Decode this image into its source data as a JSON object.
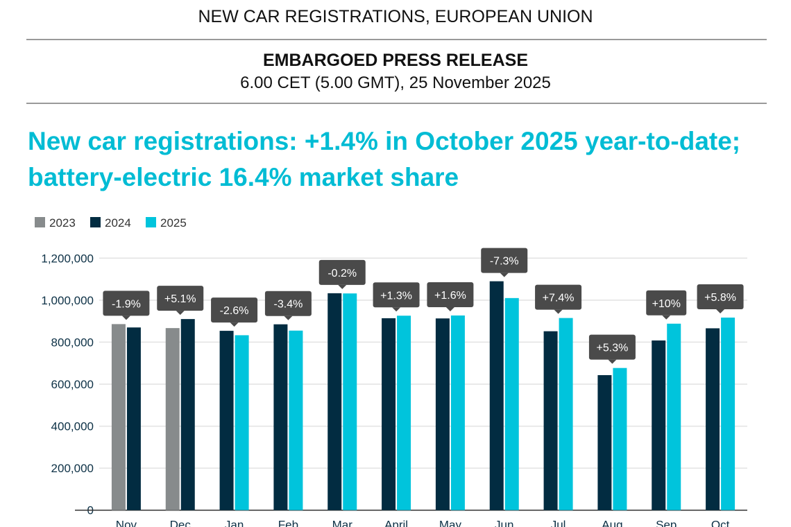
{
  "header": {
    "title": "NEW CAR REGISTRATIONS, EUROPEAN UNION",
    "release": "EMBARGOED PRESS RELEASE",
    "embargo": "6.00 CET (5.00 GMT), 25 November 2025"
  },
  "headline": "New car registrations: +1.4% in October 2025 year-to-date; battery-electric 16.4% market share",
  "chart_data": {
    "type": "bar",
    "title": "",
    "xlabel": "",
    "ylabel": "",
    "ylim": [
      0,
      1200000
    ],
    "yticks": [
      0,
      200000,
      400000,
      600000,
      800000,
      1000000,
      1200000
    ],
    "ytick_labels": [
      "0",
      "200,000",
      "400,000",
      "600,000",
      "800,000",
      "1,000,000",
      "1,200,000"
    ],
    "grid": true,
    "legend_position": "top-left",
    "categories": [
      "Nov",
      "Dec",
      "Jan",
      "Feb",
      "Mar",
      "April",
      "May",
      "Jun",
      "Jul",
      "Aug",
      "Sep",
      "Oct"
    ],
    "series": [
      {
        "name": "2023",
        "color": "#878b8c",
        "values": [
          886000,
          867000,
          null,
          null,
          null,
          null,
          null,
          null,
          null,
          null,
          null,
          null
        ]
      },
      {
        "name": "2024",
        "color": "#022c41",
        "values": [
          870000,
          910000,
          854000,
          885000,
          1033000,
          914000,
          913000,
          1090000,
          852000,
          643000,
          808000,
          866000
        ]
      },
      {
        "name": "2025",
        "color": "#00c4dc",
        "values": [
          null,
          null,
          833000,
          855000,
          1032000,
          926000,
          927000,
          1010000,
          915000,
          677000,
          888000,
          917000
        ]
      }
    ],
    "annotations": [
      "-1.9%",
      "+5.1%",
      "-2.6%",
      "-3.4%",
      "-0.2%",
      "+1.3%",
      "+1.6%",
      "-7.3%",
      "+7.4%",
      "+5.3%",
      "+10%",
      "+5.8%"
    ]
  }
}
